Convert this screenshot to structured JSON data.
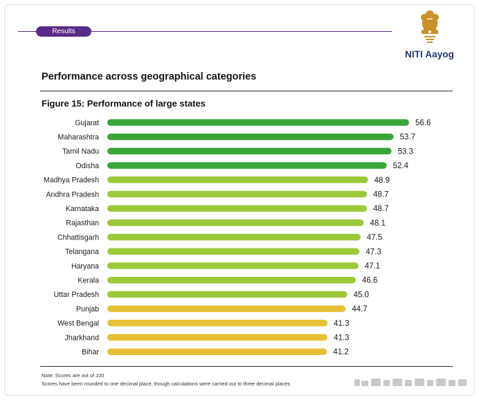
{
  "header": {
    "tag_label": "Results",
    "brand": "NITI Aayog"
  },
  "section_title": "Performance across geographical categories",
  "chart_data": {
    "type": "bar",
    "orientation": "horizontal",
    "title": "Figure 15: Performance of large states",
    "categories": [
      "Gujarat",
      "Maharashtra",
      "Tamil Nadu",
      "Odisha",
      "Madhya Pradesh",
      "Andhra Pradesh",
      "Karnataka",
      "Rajasthan",
      "Chhattisgarh",
      "Telangana",
      "Haryana",
      "Kerala",
      "Uttar Pradesh",
      "Punjab",
      "West Bengal",
      "Jharkhand",
      "Bihar"
    ],
    "values": [
      56.6,
      53.7,
      53.3,
      52.4,
      48.9,
      48.7,
      48.7,
      48.1,
      47.5,
      47.3,
      47.1,
      46.6,
      45.0,
      44.7,
      41.3,
      41.3,
      41.2
    ],
    "value_labels": [
      "56.6",
      "53.7",
      "53.3",
      "52.4",
      "48.9",
      "48.7",
      "48.7",
      "48.1",
      "47.5",
      "47.3",
      "47.1",
      "46.6",
      "45.0",
      "44.7",
      "41.3",
      "41.3",
      "41.2"
    ],
    "xlim": [
      0,
      56.6
    ],
    "grid": false,
    "legend": "none",
    "colors": {
      "top": "#3aa63a",
      "upper_middle": "#9cc93a",
      "lower": "#e6c137"
    },
    "color_groups": [
      "top",
      "top",
      "top",
      "top",
      "upper_middle",
      "upper_middle",
      "upper_middle",
      "upper_middle",
      "upper_middle",
      "upper_middle",
      "upper_middle",
      "upper_middle",
      "upper_middle",
      "lower",
      "lower",
      "lower",
      "lower"
    ]
  },
  "notes": {
    "line1": "Note: Scores are out of 100",
    "line2": "Scores have been rounded to one decimal place, though calculations were carried out to three decimal places"
  }
}
